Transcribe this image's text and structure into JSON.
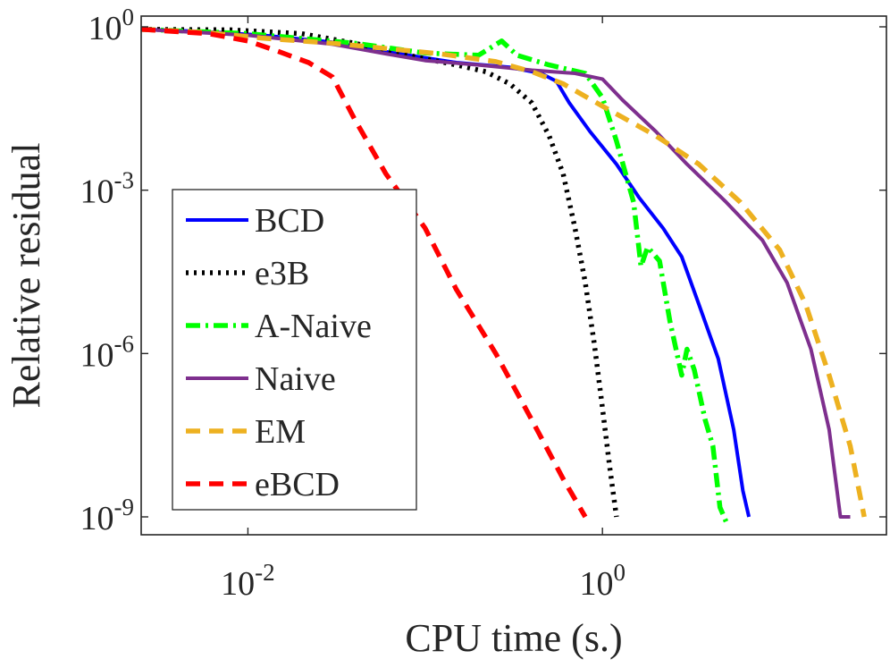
{
  "chart_data": {
    "type": "line",
    "title": "",
    "xlabel": "CPU time (s.)",
    "ylabel": "Relative residual",
    "xscale": "log",
    "yscale": "log",
    "xlim": [
      0.0025,
      40
    ],
    "ylim": [
      1e-09,
      1
    ],
    "x_ticks": [
      {
        "value": 0.01,
        "base": "10",
        "exp": "-2"
      },
      {
        "value": 1,
        "base": "10",
        "exp": "0"
      }
    ],
    "y_ticks": [
      {
        "value": 1,
        "base": "10",
        "exp": "0"
      },
      {
        "value": 0.001,
        "base": "10",
        "exp": "-3"
      },
      {
        "value": 1e-06,
        "base": "10",
        "exp": "-6"
      },
      {
        "value": 1e-09,
        "base": "10",
        "exp": "-9"
      }
    ],
    "legend_position": "left",
    "series": [
      {
        "name": "BCD",
        "color": "#0000ff",
        "dash": "solid",
        "points": [
          [
            0.0025,
            0.9
          ],
          [
            0.0055,
            0.82
          ],
          [
            0.012,
            0.7
          ],
          [
            0.03,
            0.52
          ],
          [
            0.06,
            0.35
          ],
          [
            0.15,
            0.22
          ],
          [
            0.3,
            0.18
          ],
          [
            0.45,
            0.14
          ],
          [
            0.55,
            0.1
          ],
          [
            0.65,
            0.04
          ],
          [
            0.85,
            0.012
          ],
          [
            1.2,
            0.003
          ],
          [
            1.6,
            0.00075
          ],
          [
            2.2,
            0.0002
          ],
          [
            2.8,
            6e-05
          ],
          [
            3.5,
            8e-06
          ],
          [
            4.5,
            8e-07
          ],
          [
            5.5,
            4e-08
          ],
          [
            6.2,
            3e-09
          ],
          [
            6.7,
            1e-09
          ]
        ]
      },
      {
        "name": "e3B",
        "color": "#000000",
        "dash": "dotted",
        "points": [
          [
            0.0025,
            0.9
          ],
          [
            0.008,
            0.88
          ],
          [
            0.02,
            0.75
          ],
          [
            0.04,
            0.5
          ],
          [
            0.08,
            0.3
          ],
          [
            0.15,
            0.2
          ],
          [
            0.22,
            0.15
          ],
          [
            0.3,
            0.09
          ],
          [
            0.4,
            0.04
          ],
          [
            0.5,
            0.01
          ],
          [
            0.6,
            0.002
          ],
          [
            0.7,
            0.0002
          ],
          [
            0.8,
            2e-05
          ],
          [
            0.9,
            1.5e-06
          ],
          [
            1.0,
            1e-07
          ],
          [
            1.1,
            8e-09
          ],
          [
            1.2,
            1e-09
          ]
        ]
      },
      {
        "name": "A-Naive",
        "color": "#00ff00",
        "dash": "dashdot",
        "points": [
          [
            0.0025,
            0.9
          ],
          [
            0.01,
            0.75
          ],
          [
            0.04,
            0.5
          ],
          [
            0.1,
            0.33
          ],
          [
            0.2,
            0.3
          ],
          [
            0.27,
            0.55
          ],
          [
            0.33,
            0.3
          ],
          [
            0.5,
            0.2
          ],
          [
            0.8,
            0.14
          ],
          [
            1.0,
            0.05
          ],
          [
            1.2,
            0.008
          ],
          [
            1.5,
            0.0006
          ],
          [
            1.65,
            4e-05
          ],
          [
            1.8,
            9e-05
          ],
          [
            2.1,
            5e-05
          ],
          [
            2.4,
            4e-06
          ],
          [
            2.8,
            4e-07
          ],
          [
            3.0,
            1.2e-06
          ],
          [
            3.3,
            5e-07
          ],
          [
            3.8,
            6e-08
          ],
          [
            4.2,
            2e-08
          ],
          [
            4.6,
            1.5e-09
          ],
          [
            5.0,
            8e-10
          ]
        ]
      },
      {
        "name": "Naive",
        "color": "#7e2f8e",
        "dash": "solid",
        "points": [
          [
            0.0025,
            0.9
          ],
          [
            0.01,
            0.7
          ],
          [
            0.03,
            0.48
          ],
          [
            0.06,
            0.32
          ],
          [
            0.1,
            0.24
          ],
          [
            0.2,
            0.2
          ],
          [
            0.4,
            0.16
          ],
          [
            0.7,
            0.14
          ],
          [
            1.0,
            0.11
          ],
          [
            1.3,
            0.045
          ],
          [
            2.0,
            0.012
          ],
          [
            3.0,
            0.003
          ],
          [
            5.0,
            0.0006
          ],
          [
            8.0,
            0.00012
          ],
          [
            11.0,
            2e-05
          ],
          [
            15.0,
            1.2e-06
          ],
          [
            19.0,
            4e-08
          ],
          [
            22.0,
            1e-09
          ],
          [
            25.0,
            1e-09
          ]
        ]
      },
      {
        "name": "EM",
        "color": "#edb120",
        "dash": "dashed",
        "points": [
          [
            0.0025,
            0.9
          ],
          [
            0.006,
            0.78
          ],
          [
            0.012,
            0.62
          ],
          [
            0.03,
            0.5
          ],
          [
            0.06,
            0.4
          ],
          [
            0.12,
            0.32
          ],
          [
            0.25,
            0.23
          ],
          [
            0.4,
            0.15
          ],
          [
            0.6,
            0.09
          ],
          [
            1.0,
            0.035
          ],
          [
            2.0,
            0.01
          ],
          [
            3.5,
            0.003
          ],
          [
            6.0,
            0.0006
          ],
          [
            10.0,
            8e-05
          ],
          [
            14.0,
            8e-06
          ],
          [
            19.0,
            4e-07
          ],
          [
            25.0,
            2e-08
          ],
          [
            30.0,
            1e-09
          ]
        ]
      },
      {
        "name": "eBCD",
        "color": "#ff0000",
        "dash": "dashed",
        "points": [
          [
            0.0025,
            0.9
          ],
          [
            0.006,
            0.75
          ],
          [
            0.01,
            0.55
          ],
          [
            0.015,
            0.35
          ],
          [
            0.022,
            0.22
          ],
          [
            0.03,
            0.12
          ],
          [
            0.04,
            0.02
          ],
          [
            0.06,
            0.002
          ],
          [
            0.1,
            0.0002
          ],
          [
            0.15,
            1.5e-05
          ],
          [
            0.25,
            1e-06
          ],
          [
            0.4,
            6e-08
          ],
          [
            0.6,
            5e-09
          ],
          [
            0.8,
            1e-09
          ]
        ]
      }
    ]
  }
}
